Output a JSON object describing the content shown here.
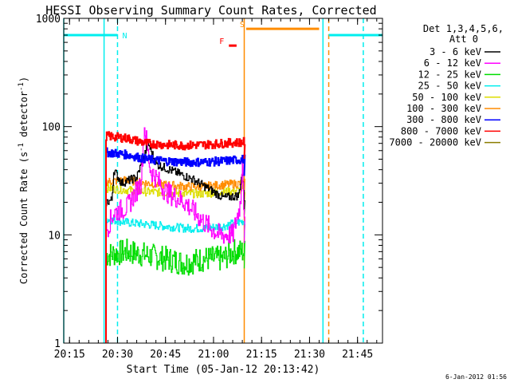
{
  "chart_data": {
    "type": "line",
    "title": "HESSI Observing Summary Count Rates, Corrected",
    "xlabel": "Start Time (05-Jan-12 20:13:42)",
    "ylabel_main": "Corrected Count Rate (s",
    "ylabel_sup1": "-1",
    "ylabel_mid": " detector",
    "ylabel_sup2": "-1",
    "ylabel_end": ")",
    "yscale": "log",
    "ylim": [
      1,
      1000
    ],
    "xlim": [
      20.22,
      21.88
    ],
    "grid": false,
    "x_ticks": [
      {
        "v": 20.25,
        "label": "20:15"
      },
      {
        "v": 20.5,
        "label": "20:30"
      },
      {
        "v": 20.75,
        "label": "20:45"
      },
      {
        "v": 21.0,
        "label": "21:00"
      },
      {
        "v": 21.25,
        "label": "21:15"
      },
      {
        "v": 21.5,
        "label": "21:30"
      },
      {
        "v": 21.75,
        "label": "21:45"
      }
    ],
    "y_ticks": [
      {
        "v": 1,
        "label": "1"
      },
      {
        "v": 10,
        "label": "10"
      },
      {
        "v": 100,
        "label": "100"
      },
      {
        "v": 1000,
        "label": "1000"
      }
    ],
    "legend_header": [
      "Det 1,3,4,5,6,",
      "Att 0"
    ],
    "legend_placement": "right",
    "series": [
      {
        "name": "3 - 6 keV",
        "color": "#000000",
        "points": [
          [
            20.44,
            20
          ],
          [
            20.47,
            21
          ],
          [
            20.48,
            40
          ],
          [
            20.52,
            30
          ],
          [
            20.6,
            34
          ],
          [
            20.66,
            70
          ],
          [
            20.7,
            45
          ],
          [
            20.8,
            38
          ],
          [
            20.9,
            32
          ],
          [
            21.0,
            25
          ],
          [
            21.05,
            22
          ],
          [
            21.13,
            23
          ],
          [
            21.15,
            40
          ],
          [
            21.16,
            22
          ]
        ]
      },
      {
        "name": "6 - 12 keV",
        "color": "#ff00ff",
        "points": [
          [
            20.44,
            11
          ],
          [
            20.48,
            16
          ],
          [
            20.55,
            18
          ],
          [
            20.62,
            30
          ],
          [
            20.64,
            100
          ],
          [
            20.67,
            40
          ],
          [
            20.75,
            25
          ],
          [
            20.85,
            20
          ],
          [
            20.95,
            13
          ],
          [
            21.03,
            10
          ],
          [
            21.1,
            10
          ],
          [
            21.14,
            20
          ],
          [
            21.15,
            60
          ],
          [
            21.16,
            12
          ]
        ]
      },
      {
        "name": "12 - 25 keV",
        "color": "#00dd00",
        "points": [
          [
            20.44,
            6.5
          ],
          [
            20.55,
            7
          ],
          [
            20.65,
            6.5
          ],
          [
            20.75,
            6
          ],
          [
            20.85,
            5.5
          ],
          [
            20.95,
            6
          ],
          [
            21.05,
            6
          ],
          [
            21.1,
            7
          ],
          [
            21.16,
            7
          ]
        ]
      },
      {
        "name": "25 - 50 keV",
        "color": "#00eeee",
        "points": [
          [
            20.44,
            14
          ],
          [
            20.55,
            13
          ],
          [
            20.65,
            12.5
          ],
          [
            20.75,
            12
          ],
          [
            20.85,
            11.5
          ],
          [
            20.95,
            11.5
          ],
          [
            21.05,
            12
          ],
          [
            21.16,
            13.5
          ]
        ]
      },
      {
        "name": "50 - 100 keV",
        "color": "#dddd00",
        "points": [
          [
            20.44,
            27
          ],
          [
            20.55,
            26
          ],
          [
            20.65,
            25
          ],
          [
            20.75,
            24.5
          ],
          [
            20.85,
            24
          ],
          [
            20.95,
            24
          ],
          [
            21.05,
            25
          ],
          [
            21.16,
            26
          ]
        ]
      },
      {
        "name": "100 - 300 keV",
        "color": "#ff8c00",
        "points": [
          [
            20.44,
            31
          ],
          [
            20.55,
            32
          ],
          [
            20.65,
            30
          ],
          [
            20.75,
            29
          ],
          [
            20.85,
            28
          ],
          [
            20.95,
            28
          ],
          [
            21.05,
            29
          ],
          [
            21.16,
            30
          ]
        ]
      },
      {
        "name": "300 - 800 keV",
        "color": "#0000ff",
        "points": [
          [
            20.44,
            58
          ],
          [
            20.55,
            55
          ],
          [
            20.65,
            50
          ],
          [
            20.75,
            48
          ],
          [
            20.85,
            47
          ],
          [
            20.95,
            47
          ],
          [
            21.05,
            48
          ],
          [
            21.16,
            50
          ]
        ]
      },
      {
        "name": "800 - 7000 keV",
        "color": "#ff0000",
        "points": [
          [
            20.44,
            82
          ],
          [
            20.55,
            78
          ],
          [
            20.65,
            70
          ],
          [
            20.75,
            68
          ],
          [
            20.85,
            67
          ],
          [
            20.95,
            68
          ],
          [
            21.05,
            70
          ],
          [
            21.16,
            72
          ]
        ]
      },
      {
        "name": "7000 - 20000 keV",
        "color": "#8b7d00",
        "points": []
      }
    ],
    "flags": [
      {
        "label": "N",
        "color": "#00eeee",
        "level": 700,
        "start": 20.22,
        "end": 20.5
      },
      {
        "label": "N",
        "color": "#00eeee",
        "level": 700,
        "start": 21.6,
        "end": 21.88
      },
      {
        "label": "S",
        "color": "#ff8c00",
        "level": 800,
        "start": 21.17,
        "end": 21.55
      },
      {
        "label": "F",
        "color": "#ff0000",
        "level": 560,
        "start": 21.08,
        "end": 21.12
      }
    ],
    "flag_lines": [
      {
        "x": 20.22,
        "color": "#00eeee",
        "dash": false
      },
      {
        "x": 20.43,
        "color": "#00eeee",
        "dash": false
      },
      {
        "x": 20.5,
        "color": "#00eeee",
        "dash": true
      },
      {
        "x": 21.16,
        "color": "#ff8c00",
        "dash": false
      },
      {
        "x": 21.57,
        "color": "#00eeee",
        "dash": false
      },
      {
        "x": 21.6,
        "color": "#ff8c00",
        "dash": true
      },
      {
        "x": 21.78,
        "color": "#00eeee",
        "dash": true
      }
    ]
  },
  "footer_date": "6-Jan-2012 01:56"
}
